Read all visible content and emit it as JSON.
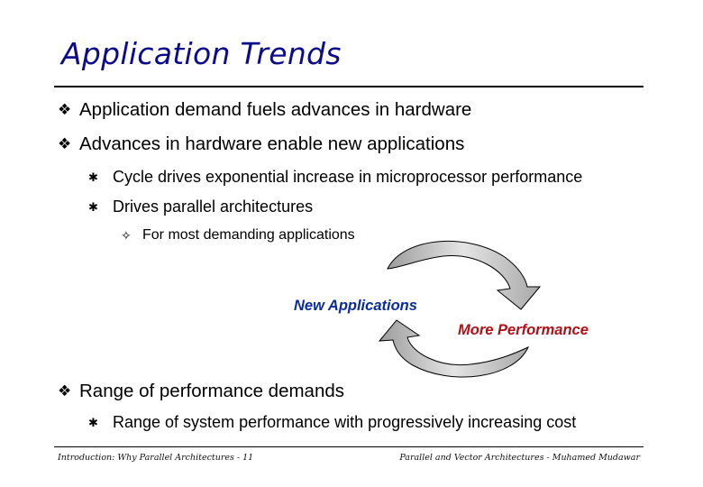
{
  "slide": {
    "title": "Application Trends",
    "bullets": {
      "b1": "Application demand fuels advances in hardware",
      "b2": "Advances in hardware enable new applications",
      "b2_1": "Cycle drives exponential increase in microprocessor performance",
      "b2_2": "Drives parallel architectures",
      "b2_2_1": "For most demanding applications",
      "b3": "Range of performance demands",
      "b3_1": "Range of system performance with progressively increasing cost"
    },
    "markers": {
      "level1": "❖",
      "level2": "✱",
      "level3": "✧"
    },
    "diagram": {
      "label_new": "New Applications",
      "label_perf": "More Performance",
      "colors": {
        "arrow_fill": "#c8c8c8",
        "arrow_stroke": "#000000",
        "new_label": "#0b2c9a",
        "perf_label": "#b01018"
      }
    },
    "footer": {
      "left": "Introduction: Why Parallel Architectures - 11",
      "right": "Parallel and Vector Architectures - Muhamed Mudawar"
    }
  }
}
